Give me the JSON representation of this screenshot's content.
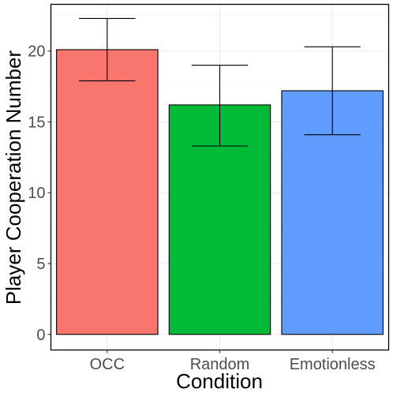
{
  "chart_data": {
    "type": "bar",
    "title": "",
    "xlabel": "Condition",
    "ylabel": "Player Cooperation Number",
    "categories": [
      "OCC",
      "Random",
      "Emotionless"
    ],
    "values": [
      20.1,
      16.2,
      17.2
    ],
    "error_low": [
      17.9,
      13.3,
      14.1
    ],
    "error_high": [
      22.3,
      19.0,
      20.3
    ],
    "colors": [
      "#F8766D",
      "#00BA38",
      "#619CFF"
    ],
    "ylim": [
      -1.1,
      23.3
    ],
    "yticks": [
      0,
      5,
      10,
      15,
      20
    ],
    "ytick_labels": [
      "0",
      "5",
      "10",
      "15",
      "20"
    ],
    "grid": true,
    "legend": "none"
  }
}
